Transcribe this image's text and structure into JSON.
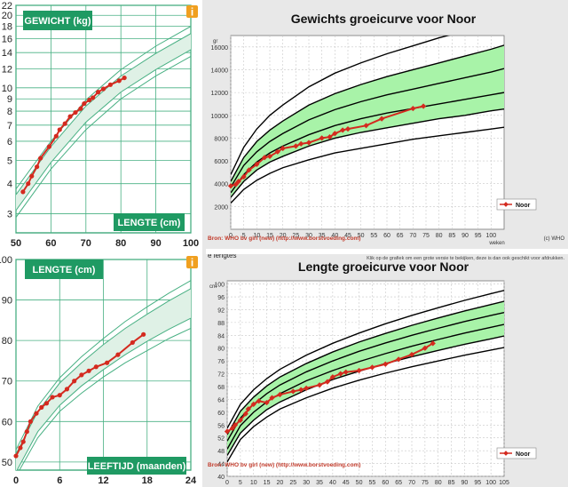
{
  "colors": {
    "nl_bg": "#ffffff",
    "nl_green": "#1f9a63",
    "nl_band": "#dff1e6",
    "nl_line": "#48b083",
    "who_band": "#a8f3a8",
    "who_curve": "#000000",
    "data_line": "#d42a1f",
    "who_plot_bg": "#ffffff",
    "who_frame_bg": "#e8e8e8",
    "info_orange": "#f0a020"
  },
  "chart_data": [
    {
      "type": "line",
      "chart": "nl_weight_for_length",
      "title": "GEWICHT (kg)",
      "xlabel": "LENGTE (cm)",
      "icon": "info-icon",
      "xlim": [
        50,
        100
      ],
      "ylim": [
        2.5,
        22
      ],
      "y_scale": "log",
      "x_ticks": [
        "50",
        "60",
        "70",
        "80",
        "90",
        "100"
      ],
      "y_ticks": [
        "3",
        "4",
        "5",
        "6",
        "7",
        "8",
        "9",
        "10",
        "12",
        "14",
        "16",
        "18",
        "20",
        "22"
      ],
      "bands": {
        "x": [
          50,
          60,
          70,
          80,
          90,
          100,
          105
        ],
        "p3": [
          2.9,
          4.6,
          6.7,
          9.0,
          11.2,
          13.5,
          14.7
        ],
        "p10": [
          3.1,
          4.9,
          7.2,
          9.6,
          11.9,
          14.4,
          15.6
        ],
        "p90": [
          3.6,
          5.7,
          8.4,
          11.2,
          13.9,
          16.8,
          18.3
        ],
        "p97": [
          3.8,
          6.0,
          8.9,
          11.9,
          14.9,
          18.0,
          19.6
        ]
      },
      "series": [
        {
          "x": [
            52,
            53.5,
            54.5,
            56,
            57,
            59.5,
            61.5,
            62.5,
            64,
            65.5,
            67,
            68.5,
            69.5,
            71,
            72,
            73.5,
            75,
            77,
            79.5,
            81
          ],
          "y": [
            3.7,
            4.0,
            4.3,
            4.7,
            5.1,
            5.7,
            6.3,
            6.7,
            7.1,
            7.6,
            7.9,
            8.2,
            8.6,
            8.9,
            9.1,
            9.6,
            9.9,
            10.3,
            10.7,
            11.0
          ]
        }
      ]
    },
    {
      "type": "line",
      "chart": "who_weight_for_age",
      "title": "Gewichts groeicurve voor Noor",
      "ylabel": "gr",
      "xlabel": "weken",
      "source": "Bron: WHO bv girl (new) (http://www.borstvoeding.com)",
      "brand": "(c) WHO",
      "legend": {
        "label": "Noor",
        "position": "right"
      },
      "xlim": [
        0,
        105
      ],
      "ylim": [
        0,
        17000
      ],
      "x_ticks": [
        "0",
        "5",
        "10",
        "15",
        "20",
        "25",
        "30",
        "35",
        "40",
        "45",
        "50",
        "55",
        "60",
        "65",
        "70",
        "75",
        "80",
        "85",
        "90",
        "95",
        "100"
      ],
      "y_ticks": [
        "2000",
        "4000",
        "6000",
        "8000",
        "10000",
        "12000",
        "14000",
        "16000"
      ],
      "curves": {
        "x": [
          0,
          5,
          10,
          15,
          20,
          30,
          40,
          50,
          60,
          70,
          80,
          90,
          100,
          105
        ],
        "c1": [
          2300,
          3500,
          4300,
          4900,
          5400,
          6100,
          6700,
          7100,
          7500,
          7900,
          8200,
          8500,
          8800,
          8950
        ],
        "c2": [
          2800,
          4200,
          5200,
          5900,
          6400,
          7300,
          8000,
          8500,
          8900,
          9300,
          9700,
          10000,
          10400,
          10550
        ],
        "c3": [
          3200,
          4800,
          5900,
          6700,
          7300,
          8300,
          9100,
          9700,
          10200,
          10600,
          11000,
          11400,
          11800,
          12000
        ],
        "c4": [
          3700,
          5600,
          6800,
          7700,
          8400,
          9600,
          10500,
          11200,
          11800,
          12300,
          12800,
          13300,
          13800,
          14100
        ],
        "c5": [
          4200,
          6300,
          7700,
          8700,
          9500,
          10900,
          11900,
          12700,
          13400,
          14000,
          14600,
          15200,
          15800,
          16150
        ],
        "c6": [
          4800,
          7200,
          8800,
          10000,
          10900,
          12500,
          13700,
          14600,
          15400,
          16100,
          16800,
          17400,
          18000,
          18400
        ]
      },
      "series": [
        {
          "name": "Noor",
          "x": [
            0,
            2,
            3,
            5,
            7,
            10,
            13,
            15,
            18,
            20,
            25,
            27,
            30,
            35,
            38,
            40,
            43,
            45,
            52,
            58,
            70,
            74
          ],
          "y": [
            3800,
            3950,
            4200,
            4600,
            5200,
            5700,
            6300,
            6400,
            6800,
            7100,
            7300,
            7500,
            7600,
            8000,
            8100,
            8400,
            8700,
            8800,
            9100,
            9700,
            10600,
            10800
          ]
        }
      ]
    },
    {
      "type": "line",
      "chart": "nl_length_for_age",
      "title": "LENGTE (cm)",
      "xlabel": "LEEFTIJD (maanden)",
      "icon": "info-icon",
      "xlim": [
        0,
        24
      ],
      "ylim": [
        48,
        100
      ],
      "x_ticks": [
        "0",
        "6",
        "12",
        "18",
        "24"
      ],
      "y_ticks": [
        "50",
        "60",
        "70",
        "80",
        "90",
        "100"
      ],
      "bands": {
        "x": [
          0,
          3,
          6,
          9,
          12,
          15,
          18,
          21,
          24
        ],
        "p3": [
          46.5,
          56.0,
          62.5,
          67.0,
          71.0,
          74.5,
          77.5,
          80.5,
          83.0
        ],
        "p10": [
          47.5,
          57.5,
          64.0,
          68.8,
          72.8,
          76.5,
          79.8,
          82.8,
          85.5
        ],
        "p90": [
          52.0,
          62.5,
          69.5,
          74.5,
          79.0,
          83.0,
          86.5,
          89.8,
          92.8
        ],
        "p97": [
          53.0,
          63.8,
          70.8,
          76.0,
          80.5,
          84.7,
          88.3,
          91.7,
          94.8
        ]
      },
      "series": [
        {
          "x": [
            0,
            0.6,
            1,
            1.5,
            2,
            2.8,
            3.5,
            4.2,
            5,
            6,
            7,
            8,
            9,
            10,
            11,
            12.5,
            14,
            16,
            17.5
          ],
          "y": [
            51.5,
            53.5,
            55,
            57.5,
            60,
            62,
            63.5,
            64.5,
            66,
            66.5,
            68,
            70,
            71.5,
            72.5,
            73.5,
            74.5,
            76.5,
            79.5,
            81.5
          ]
        }
      ]
    },
    {
      "type": "line",
      "chart": "who_length_for_age",
      "title": "Lengte groeicurve voor Noor",
      "header_note": "e lengtes",
      "ylabel": "cm",
      "xlabel": "weken",
      "caption": "Klik op de grafiek om een grote versie te bekijken, deze is dan ook geschikt voor afdrukken.",
      "source": "Bron: WHO bv girl (new) (http://www.borstvoeding.com)",
      "legend": {
        "label": "Noor",
        "position": "right"
      },
      "xlim": [
        0,
        105
      ],
      "ylim": [
        40,
        101
      ],
      "x_ticks": [
        "0",
        "5",
        "10",
        "15",
        "20",
        "25",
        "30",
        "35",
        "40",
        "45",
        "50",
        "55",
        "60",
        "65",
        "70",
        "75",
        "80",
        "85",
        "90",
        "95",
        "100",
        "105"
      ],
      "y_ticks": [
        "40",
        "44",
        "48",
        "52",
        "56",
        "60",
        "64",
        "68",
        "72",
        "76",
        "80",
        "84",
        "88",
        "92",
        "96",
        "100"
      ],
      "curves": {
        "x": [
          0,
          5,
          10,
          15,
          20,
          30,
          40,
          50,
          60,
          70,
          80,
          90,
          100,
          105
        ],
        "c1": [
          44.5,
          51.5,
          55.5,
          58.5,
          61.0,
          64.5,
          67.5,
          70.0,
          72.2,
          74.2,
          76.0,
          77.8,
          79.4,
          80.2
        ],
        "c2": [
          46.5,
          53.5,
          57.5,
          60.8,
          63.2,
          67.0,
          70.2,
          72.8,
          75.2,
          77.3,
          79.3,
          81.2,
          82.9,
          83.8
        ],
        "c3": [
          48.5,
          55.8,
          60.0,
          63.2,
          65.8,
          69.8,
          73.0,
          75.8,
          78.3,
          80.6,
          82.7,
          84.7,
          86.5,
          87.4
        ],
        "c4": [
          51.0,
          58.2,
          62.5,
          65.8,
          68.5,
          72.6,
          76.0,
          79.0,
          81.6,
          84.0,
          86.2,
          88.3,
          90.2,
          91.1
        ],
        "c5": [
          53.0,
          60.3,
          64.7,
          68.2,
          71.0,
          75.2,
          78.8,
          81.9,
          84.6,
          87.1,
          89.4,
          91.6,
          93.6,
          94.6
        ],
        "c6": [
          55.0,
          62.5,
          67.0,
          70.5,
          73.4,
          77.8,
          81.5,
          84.7,
          87.6,
          90.2,
          92.6,
          94.9,
          97.0,
          98.0
        ]
      },
      "series": [
        {
          "name": "Noor",
          "x": [
            0,
            2,
            3,
            5,
            7,
            8,
            10,
            12,
            15,
            17,
            20,
            25,
            28,
            30,
            35,
            38,
            40,
            43,
            45,
            50,
            55,
            60,
            65,
            70,
            75,
            78
          ],
          "y": [
            54,
            55,
            56,
            57.5,
            59.5,
            61,
            62.5,
            63.5,
            63,
            64.5,
            65.5,
            66.5,
            67,
            67.5,
            68.5,
            69.5,
            71,
            72,
            72.5,
            73,
            74,
            75,
            76.5,
            78,
            80,
            81.5
          ]
        }
      ]
    }
  ]
}
